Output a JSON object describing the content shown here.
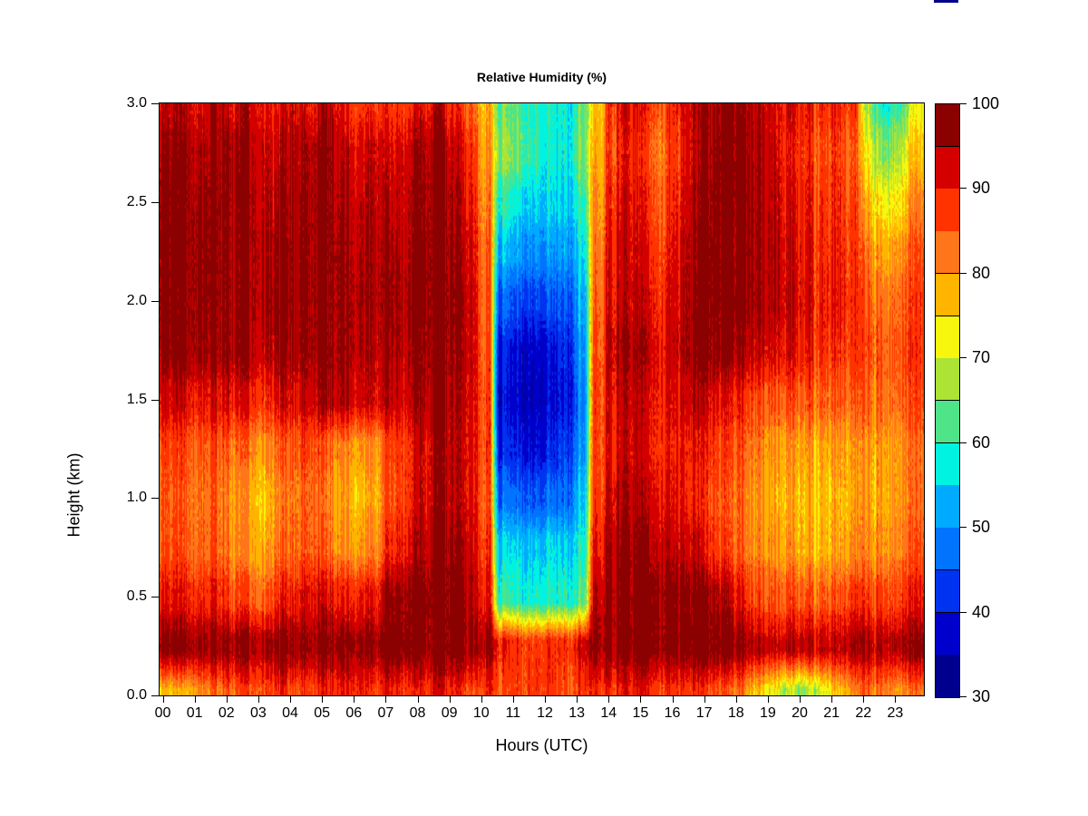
{
  "artifact": {
    "color": "#00008B"
  },
  "chart_data": {
    "type": "heatmap",
    "title": "Relative Humidity (%)",
    "xlabel": "Hours (UTC)",
    "ylabel": "Height (km)",
    "x_range": [
      0,
      24
    ],
    "y_range": [
      0,
      3
    ],
    "x_tick_labels": [
      "00",
      "01",
      "02",
      "03",
      "04",
      "05",
      "06",
      "07",
      "08",
      "09",
      "10",
      "11",
      "12",
      "13",
      "14",
      "15",
      "16",
      "17",
      "18",
      "19",
      "20",
      "21",
      "22",
      "23"
    ],
    "y_tick_values": [
      0.0,
      0.5,
      1.0,
      1.5,
      2.0,
      2.5,
      3.0
    ],
    "y_tick_labels": [
      "0.0",
      "0.5",
      "1.0",
      "1.5",
      "2.0",
      "2.5",
      "3.0"
    ],
    "colorbar": {
      "tick_values": [
        30,
        40,
        50,
        60,
        70,
        80,
        90,
        100
      ],
      "tick_labels": [
        "30",
        "40",
        "50",
        "60",
        "70",
        "80",
        "90",
        "100"
      ],
      "level_min": 30,
      "level_max": 100,
      "level_step": 5,
      "palette_low_to_high": [
        "#00008F",
        "#0000CD",
        "#0033F0",
        "#0073FF",
        "#00AAFF",
        "#00F2E0",
        "#4FE487",
        "#ADE334",
        "#F7F70D",
        "#FFB400",
        "#FF7519",
        "#FF3300",
        "#D40000",
        "#8B0000"
      ]
    },
    "grid": {
      "note": "Relative humidity (%) field; rows are heights (km) top-to-bottom, columns are hour-of-day cell centers.",
      "heights": [
        3.0,
        2.75,
        2.5,
        2.25,
        2.0,
        1.75,
        1.5,
        1.25,
        1.0,
        0.75,
        0.5,
        0.25,
        0.0
      ],
      "hour_centers": [
        0.25,
        0.75,
        1.25,
        1.75,
        2.25,
        2.75,
        3.25,
        3.75,
        4.25,
        4.75,
        5.25,
        5.75,
        6.25,
        6.75,
        7.25,
        7.75,
        8.25,
        8.75,
        9.25,
        9.75,
        10.25,
        10.75,
        11.25,
        11.75,
        12.25,
        12.75,
        13.25,
        13.75,
        14.25,
        14.75,
        15.25,
        15.75,
        16.25,
        16.75,
        17.25,
        17.75,
        18.25,
        18.75,
        19.25,
        19.75,
        20.25,
        20.75,
        21.25,
        21.75,
        22.25,
        22.75,
        23.25,
        23.75
      ],
      "values": [
        [
          93,
          95,
          92,
          96,
          94,
          95,
          93,
          90,
          94,
          92,
          95,
          91,
          88,
          90,
          86,
          88,
          91,
          93,
          89,
          86,
          78,
          64,
          62,
          59,
          58,
          58,
          63,
          76,
          89,
          92,
          88,
          86,
          90,
          93,
          95,
          97,
          97,
          96,
          94,
          92,
          90,
          88,
          90,
          87,
          66,
          58,
          62,
          70
        ],
        [
          96,
          98,
          95,
          97,
          98,
          97,
          95,
          93,
          96,
          97,
          98,
          94,
          92,
          95,
          90,
          93,
          96,
          97,
          93,
          90,
          80,
          67,
          64,
          60,
          57,
          58,
          64,
          78,
          88,
          90,
          86,
          84,
          88,
          92,
          96,
          98,
          98,
          97,
          95,
          90,
          88,
          85,
          88,
          84,
          72,
          65,
          68,
          75
        ],
        [
          98,
          98,
          97,
          98,
          98,
          98,
          96,
          95,
          97,
          98,
          98,
          96,
          94,
          96,
          92,
          94,
          97,
          98,
          95,
          92,
          82,
          60,
          57,
          55,
          55,
          56,
          60,
          80,
          90,
          92,
          88,
          86,
          90,
          94,
          97,
          98,
          98,
          98,
          96,
          92,
          90,
          87,
          89,
          86,
          77,
          72,
          74,
          80
        ],
        [
          98,
          98,
          98,
          98,
          98,
          98,
          97,
          96,
          98,
          98,
          98,
          97,
          95,
          97,
          94,
          95,
          98,
          98,
          96,
          94,
          84,
          54,
          51,
          50,
          50,
          52,
          56,
          82,
          92,
          93,
          90,
          88,
          92,
          95,
          98,
          98,
          98,
          98,
          97,
          93,
          91,
          88,
          90,
          87,
          82,
          78,
          80,
          84
        ],
        [
          98,
          98,
          98,
          98,
          98,
          98,
          97,
          97,
          98,
          98,
          98,
          97,
          96,
          97,
          95,
          96,
          98,
          98,
          97,
          95,
          85,
          47,
          44,
          43,
          44,
          46,
          52,
          84,
          93,
          94,
          92,
          90,
          93,
          96,
          98,
          98,
          98,
          98,
          97,
          94,
          92,
          89,
          91,
          88,
          85,
          82,
          84,
          86
        ],
        [
          97,
          98,
          97,
          97,
          98,
          97,
          96,
          96,
          97,
          98,
          98,
          97,
          95,
          96,
          94,
          95,
          97,
          98,
          96,
          95,
          86,
          41,
          38,
          37,
          38,
          42,
          50,
          85,
          95,
          96,
          94,
          92,
          94,
          96,
          97,
          97,
          96,
          95,
          94,
          92,
          90,
          88,
          89,
          87,
          86,
          84,
          85,
          87
        ],
        [
          92,
          93,
          91,
          92,
          93,
          92,
          90,
          91,
          93,
          95,
          96,
          95,
          93,
          94,
          92,
          93,
          96,
          97,
          95,
          94,
          87,
          39,
          37,
          36,
          37,
          40,
          48,
          86,
          93,
          94,
          92,
          91,
          92,
          93,
          92,
          90,
          89,
          88,
          87,
          86,
          85,
          84,
          85,
          84,
          84,
          83,
          84,
          85
        ],
        [
          86,
          87,
          85,
          86,
          85,
          84,
          82,
          83,
          86,
          88,
          84,
          82,
          80,
          82,
          85,
          88,
          92,
          95,
          94,
          93,
          87,
          42,
          40,
          38,
          40,
          44,
          50,
          86,
          92,
          93,
          91,
          90,
          90,
          89,
          88,
          86,
          85,
          84,
          82,
          80,
          79,
          78,
          80,
          79,
          80,
          79,
          80,
          82
        ],
        [
          84,
          85,
          83,
          84,
          82,
          80,
          78,
          80,
          84,
          86,
          82,
          79,
          77,
          80,
          84,
          88,
          92,
          95,
          94,
          93,
          86,
          48,
          46,
          45,
          46,
          48,
          54,
          87,
          94,
          95,
          93,
          92,
          91,
          88,
          86,
          84,
          83,
          82,
          80,
          78,
          77,
          76,
          78,
          78,
          79,
          78,
          80,
          82
        ],
        [
          85,
          86,
          84,
          85,
          83,
          81,
          80,
          82,
          85,
          87,
          84,
          81,
          80,
          83,
          87,
          91,
          95,
          97,
          96,
          95,
          88,
          56,
          55,
          54,
          55,
          56,
          58,
          90,
          96,
          97,
          96,
          95,
          94,
          92,
          88,
          86,
          84,
          83,
          82,
          80,
          78,
          77,
          79,
          80,
          81,
          80,
          82,
          84
        ],
        [
          90,
          91,
          89,
          90,
          88,
          87,
          86,
          88,
          91,
          93,
          92,
          90,
          90,
          92,
          95,
          97,
          98,
          98,
          98,
          97,
          91,
          61,
          59,
          58,
          58,
          60,
          62,
          94,
          98,
          98,
          98,
          98,
          98,
          97,
          96,
          94,
          90,
          88,
          87,
          86,
          85,
          84,
          86,
          87,
          87,
          86,
          87,
          89
        ],
        [
          97,
          98,
          97,
          97,
          98,
          98,
          97,
          97,
          98,
          98,
          98,
          98,
          97,
          98,
          98,
          98,
          98,
          98,
          98,
          98,
          96,
          90,
          88,
          87,
          88,
          89,
          92,
          96,
          98,
          98,
          98,
          98,
          98,
          98,
          98,
          98,
          97,
          96,
          95,
          94,
          94,
          93,
          94,
          95,
          95,
          94,
          95,
          96
        ],
        [
          76,
          78,
          81,
          83,
          86,
          87,
          88,
          88,
          87,
          88,
          89,
          90,
          90,
          89,
          88,
          88,
          89,
          90,
          89,
          88,
          88,
          86,
          86,
          87,
          87,
          86,
          87,
          88,
          89,
          90,
          89,
          88,
          88,
          87,
          86,
          84,
          82,
          78,
          74,
          68,
          66,
          70,
          76,
          80,
          84,
          82,
          80,
          82
        ]
      ]
    },
    "texture": {
      "column_noise_amp": 3.2,
      "cluster_noise_amp": 2.6,
      "fine_noise_amp": 1.5
    }
  }
}
